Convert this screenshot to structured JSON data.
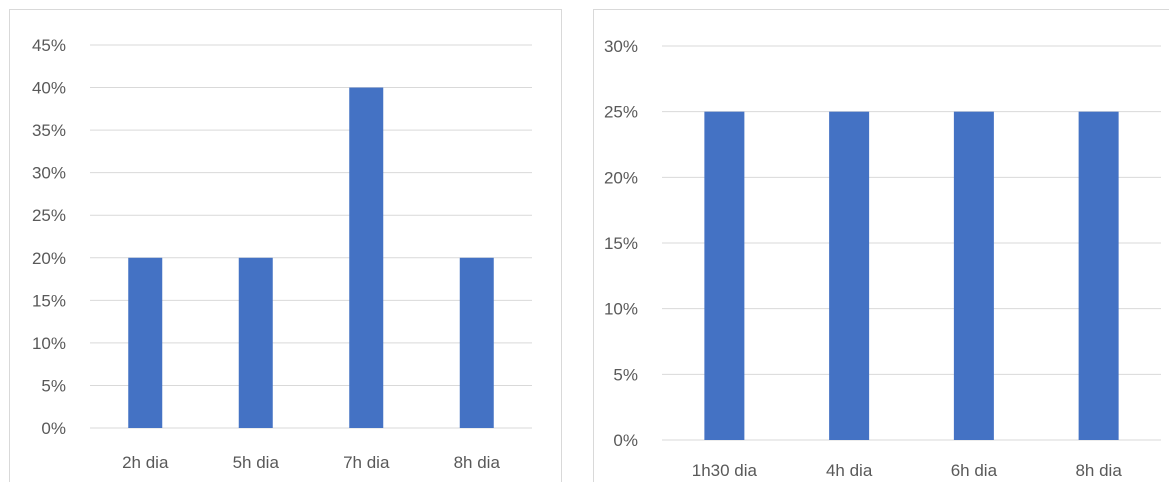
{
  "chart_data": [
    {
      "type": "bar",
      "categories": [
        "2h dia",
        "5h dia",
        "7h dia",
        "8h dia"
      ],
      "values": [
        20,
        20,
        40,
        20
      ],
      "ylim": [
        0,
        45
      ],
      "yticks": [
        "0%",
        "5%",
        "10%",
        "15%",
        "20%",
        "25%",
        "30%",
        "35%",
        "40%",
        "45%"
      ],
      "ytick_values": [
        0,
        5,
        10,
        15,
        20,
        25,
        30,
        35,
        40,
        45
      ],
      "grid": true,
      "legend": "none",
      "bar_color": "#4472c4",
      "title": "",
      "xlabel": "",
      "ylabel": ""
    },
    {
      "type": "bar",
      "categories": [
        "1h30 dia",
        "4h dia",
        "6h dia",
        "8h dia"
      ],
      "values": [
        25,
        25,
        25,
        25
      ],
      "ylim": [
        0,
        30
      ],
      "yticks": [
        "0%",
        "5%",
        "10%",
        "15%",
        "20%",
        "25%",
        "30%"
      ],
      "ytick_values": [
        0,
        5,
        10,
        15,
        20,
        25,
        30
      ],
      "grid": true,
      "legend": "none",
      "bar_color": "#4472c4",
      "title": "",
      "xlabel": "",
      "ylabel": ""
    }
  ]
}
